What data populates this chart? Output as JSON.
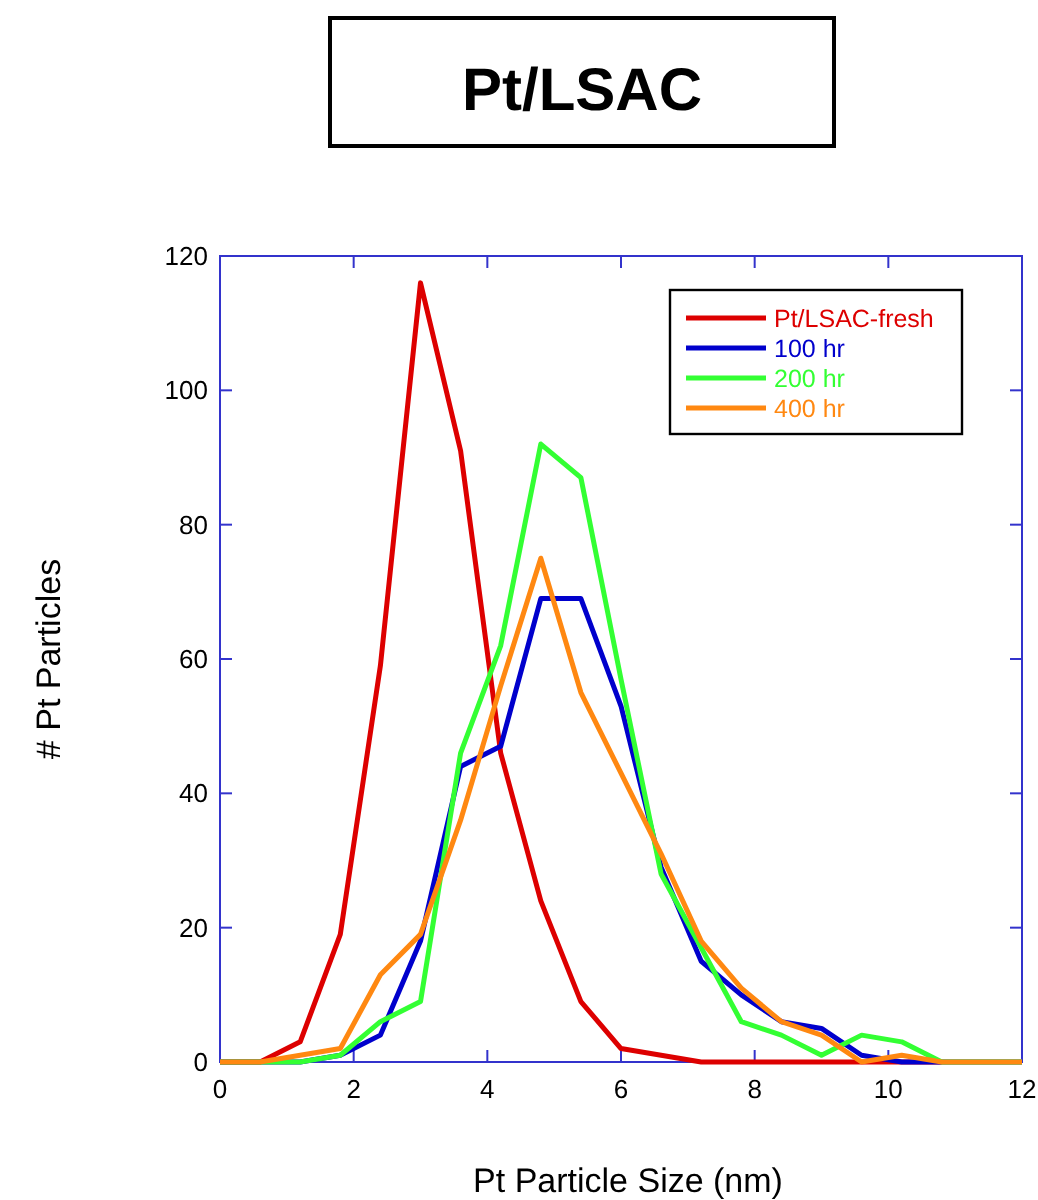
{
  "chart_data": {
    "type": "line",
    "title": "Pt/LSAC",
    "xlabel": "Pt Particle Size (nm)",
    "ylabel": "# Pt Particles",
    "x": [
      0,
      0.6,
      1.2,
      1.8,
      2.4,
      3.0,
      3.6,
      4.2,
      4.8,
      5.4,
      6.0,
      6.6,
      7.2,
      7.8,
      8.4,
      9.0,
      9.6,
      10.2,
      10.8,
      11.4,
      12
    ],
    "series": [
      {
        "name": "Pt/LSAC-fresh",
        "color": "#dd0000",
        "values": [
          0,
          0,
          3,
          19,
          59,
          116,
          91,
          46,
          24,
          9,
          2,
          1,
          0,
          0,
          0,
          0,
          0,
          0,
          0,
          null,
          null
        ]
      },
      {
        "name": "100 hr",
        "color": "#0000cc",
        "values": [
          0,
          0,
          0,
          1,
          4,
          18,
          44,
          47,
          69,
          69,
          53,
          29,
          15,
          10,
          6,
          5,
          1,
          0,
          0,
          0,
          0
        ]
      },
      {
        "name": "200 hr",
        "color": "#33ff33",
        "values": [
          0,
          0,
          0,
          1,
          6,
          9,
          46,
          62,
          92,
          87,
          57,
          28,
          17,
          6,
          4,
          1,
          4,
          3,
          0,
          0,
          0
        ]
      },
      {
        "name": "400 hr",
        "color": "#ff8811",
        "values": [
          0,
          0,
          1,
          2,
          13,
          19,
          36,
          56,
          75,
          55,
          43,
          31,
          18,
          11,
          6,
          4,
          0,
          1,
          0,
          0,
          0
        ]
      }
    ],
    "xlim": [
      0,
      12
    ],
    "ylim": [
      0,
      120
    ],
    "xticks": [
      0,
      2,
      4,
      6,
      8,
      10,
      12
    ],
    "yticks": [
      0,
      20,
      40,
      60,
      80,
      100,
      120
    ],
    "legend": "top right",
    "grid": false
  }
}
